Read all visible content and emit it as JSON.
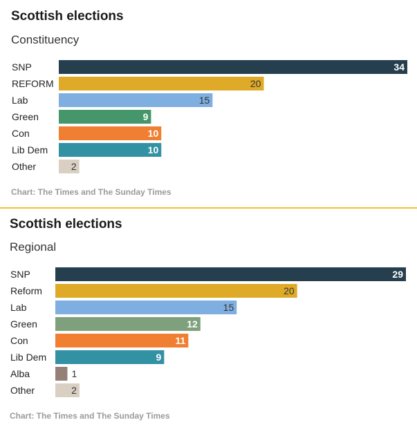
{
  "chart_data": [
    {
      "type": "bar",
      "orientation": "horizontal",
      "title": "Scottish elections",
      "subtitle": "Constituency",
      "source": "Chart: The Times and The Sunday Times",
      "xlim": [
        0,
        34
      ],
      "categories": [
        "SNP",
        "REFORM",
        "Lab",
        "Green",
        "Con",
        "Lib Dem",
        "Other"
      ],
      "values": [
        34,
        20,
        15,
        9,
        10,
        10,
        2
      ],
      "colors": [
        "#253f4e",
        "#e0aa29",
        "#7fafe0",
        "#45966a",
        "#f07f31",
        "#3391a4",
        "#dacfc3"
      ],
      "label_colors": [
        "#ffffff",
        "#333333",
        "#333333",
        "#ffffff",
        "#ffffff",
        "#ffffff",
        "#333333"
      ]
    },
    {
      "type": "bar",
      "orientation": "horizontal",
      "title": "Scottish elections",
      "subtitle": "Regional",
      "source": "Chart: The Times and The Sunday Times",
      "xlim": [
        0,
        29
      ],
      "categories": [
        "SNP",
        "Reform",
        "Lab",
        "Green",
        "Con",
        "Lib Dem",
        "Alba",
        "Other"
      ],
      "values": [
        29,
        20,
        15,
        12,
        11,
        9,
        1,
        2
      ],
      "colors": [
        "#253f4e",
        "#e0aa29",
        "#7fafe0",
        "#7ea07c",
        "#f07f31",
        "#3391a4",
        "#958078",
        "#dacfc3"
      ],
      "label_colors": [
        "#ffffff",
        "#333333",
        "#333333",
        "#ffffff",
        "#ffffff",
        "#ffffff",
        "#333333",
        "#333333"
      ]
    }
  ]
}
